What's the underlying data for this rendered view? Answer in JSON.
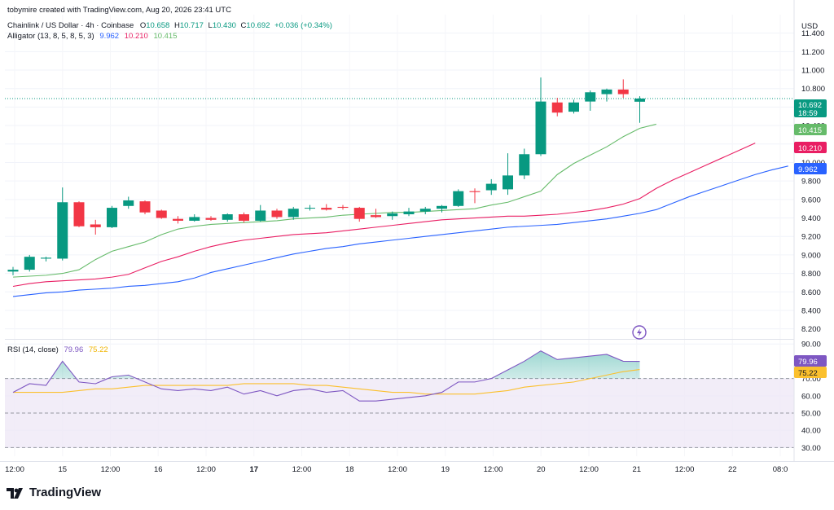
{
  "header": {
    "credit": "tobymire created with TradingView.com, Aug 20, 2026 23:41 UTC",
    "symbol_line": "Chainlink / US Dollar · 4h · Coinbase",
    "ohlc": {
      "o_label": "O",
      "o": "10.658",
      "h_label": "H",
      "h": "10.717",
      "l_label": "L",
      "l": "10.430",
      "c_label": "C",
      "c": "10.692",
      "change": "+0.036 (+0.34%)"
    },
    "indicator_label": "Alligator (13, 8, 5, 8, 5, 3)",
    "indicator_values": {
      "jaw": "9.962",
      "teeth": "10.210",
      "lips": "10.415"
    }
  },
  "rsi_header": {
    "label": "RSI (14, close)",
    "rsi": "79.96",
    "ma": "75.22"
  },
  "currency": "USD",
  "badges": {
    "price": "10.692",
    "countdown": "18:59",
    "lips": "10.415",
    "teeth": "10.210",
    "jaw": "9.962",
    "rsi": "79.96",
    "rsi_ma": "75.22"
  },
  "colors": {
    "up": "#089981",
    "down": "#f23645",
    "jaw": "#2962ff",
    "teeth": "#e91e63",
    "lips": "#66bb6a",
    "rsi": "#7e57c2",
    "rsi_ma": "#fbc02d",
    "rsi_band": "#ede7f6"
  },
  "icons": {
    "replay": "lightning-replay-icon"
  },
  "brand": "TradingView",
  "chart_data": {
    "type": "candlestick",
    "price_axis": {
      "ticks": [
        "11.400",
        "11.200",
        "11.000",
        "10.800",
        "10.600",
        "10.400",
        "10.200",
        "10.000",
        "9.800",
        "9.600",
        "9.400",
        "9.200",
        "9.000",
        "8.800",
        "8.600",
        "8.400",
        "8.200"
      ],
      "ylim": [
        8.1,
        11.6
      ]
    },
    "rsi_axis": {
      "ticks": [
        "90.00",
        "70.00",
        "60.00",
        "50.00",
        "40.00",
        "30.00"
      ],
      "ylim": [
        25,
        92
      ],
      "upper_band": 70,
      "middle": 50,
      "lower_band": 30
    },
    "x_labels": [
      "12:00",
      "15",
      "12:00",
      "16",
      "12:00",
      "17",
      "12:00",
      "18",
      "12:00",
      "19",
      "12:00",
      "20",
      "12:00",
      "21",
      "12:00",
      "22",
      "08:0"
    ],
    "bold_labels": [
      "17"
    ],
    "candles": [
      {
        "o": 8.82,
        "h": 8.87,
        "l": 8.78,
        "c": 8.84
      },
      {
        "o": 8.84,
        "h": 9.0,
        "l": 8.82,
        "c": 8.98
      },
      {
        "o": 8.96,
        "h": 8.98,
        "l": 8.93,
        "c": 8.97
      },
      {
        "o": 8.96,
        "h": 9.73,
        "l": 8.94,
        "c": 9.57
      },
      {
        "o": 9.57,
        "h": 9.58,
        "l": 9.3,
        "c": 9.31
      },
      {
        "o": 9.33,
        "h": 9.38,
        "l": 9.22,
        "c": 9.3
      },
      {
        "o": 9.3,
        "h": 9.53,
        "l": 9.29,
        "c": 9.51
      },
      {
        "o": 9.53,
        "h": 9.63,
        "l": 9.5,
        "c": 9.59
      },
      {
        "o": 9.58,
        "h": 9.59,
        "l": 9.44,
        "c": 9.46
      },
      {
        "o": 9.48,
        "h": 9.49,
        "l": 9.39,
        "c": 9.4
      },
      {
        "o": 9.39,
        "h": 9.42,
        "l": 9.34,
        "c": 9.37
      },
      {
        "o": 9.37,
        "h": 9.44,
        "l": 9.36,
        "c": 9.41
      },
      {
        "o": 9.4,
        "h": 9.42,
        "l": 9.37,
        "c": 9.38
      },
      {
        "o": 9.38,
        "h": 9.45,
        "l": 9.36,
        "c": 9.44
      },
      {
        "o": 9.44,
        "h": 9.46,
        "l": 9.35,
        "c": 9.37
      },
      {
        "o": 9.37,
        "h": 9.54,
        "l": 9.36,
        "c": 9.48
      },
      {
        "o": 9.48,
        "h": 9.5,
        "l": 9.39,
        "c": 9.41
      },
      {
        "o": 9.41,
        "h": 9.52,
        "l": 9.38,
        "c": 9.5
      },
      {
        "o": 9.51,
        "h": 9.54,
        "l": 9.48,
        "c": 9.51
      },
      {
        "o": 9.51,
        "h": 9.55,
        "l": 9.48,
        "c": 9.49
      },
      {
        "o": 9.52,
        "h": 9.54,
        "l": 9.49,
        "c": 9.51
      },
      {
        "o": 9.51,
        "h": 9.52,
        "l": 9.36,
        "c": 9.39
      },
      {
        "o": 9.43,
        "h": 9.5,
        "l": 9.4,
        "c": 9.41
      },
      {
        "o": 9.42,
        "h": 9.47,
        "l": 9.38,
        "c": 9.45
      },
      {
        "o": 9.44,
        "h": 9.51,
        "l": 9.42,
        "c": 9.47
      },
      {
        "o": 9.47,
        "h": 9.52,
        "l": 9.44,
        "c": 9.5
      },
      {
        "o": 9.5,
        "h": 9.54,
        "l": 9.46,
        "c": 9.53
      },
      {
        "o": 9.53,
        "h": 9.71,
        "l": 9.52,
        "c": 9.69
      },
      {
        "o": 9.69,
        "h": 9.72,
        "l": 9.56,
        "c": 9.68
      },
      {
        "o": 9.7,
        "h": 9.82,
        "l": 9.65,
        "c": 9.77
      },
      {
        "o": 9.71,
        "h": 10.1,
        "l": 9.65,
        "c": 9.86
      },
      {
        "o": 9.86,
        "h": 10.15,
        "l": 9.82,
        "c": 10.09
      },
      {
        "o": 10.09,
        "h": 10.92,
        "l": 10.07,
        "c": 10.66
      },
      {
        "o": 10.65,
        "h": 10.7,
        "l": 10.5,
        "c": 10.54
      },
      {
        "o": 10.55,
        "h": 10.68,
        "l": 10.53,
        "c": 10.65
      },
      {
        "o": 10.66,
        "h": 10.78,
        "l": 10.56,
        "c": 10.76
      },
      {
        "o": 10.74,
        "h": 10.8,
        "l": 10.66,
        "c": 10.79
      },
      {
        "o": 10.79,
        "h": 10.9,
        "l": 10.7,
        "c": 10.74
      },
      {
        "o": 10.658,
        "h": 10.717,
        "l": 10.43,
        "c": 10.692
      }
    ],
    "alligator": {
      "jaw": [
        8.55,
        8.57,
        8.59,
        8.6,
        8.62,
        8.63,
        8.64,
        8.66,
        8.67,
        8.69,
        8.71,
        8.75,
        8.81,
        8.85,
        8.89,
        8.93,
        8.97,
        9.01,
        9.04,
        9.07,
        9.09,
        9.12,
        9.14,
        9.16,
        9.18,
        9.2,
        9.22,
        9.24,
        9.26,
        9.28,
        9.3,
        9.31,
        9.32,
        9.33,
        9.35,
        9.37,
        9.39,
        9.42,
        9.45,
        9.49,
        9.56,
        9.63,
        9.69,
        9.75,
        9.81,
        9.87,
        9.92,
        9.962
      ],
      "teeth": [
        8.66,
        8.69,
        8.71,
        8.72,
        8.73,
        8.74,
        8.76,
        8.79,
        8.86,
        8.93,
        8.98,
        9.04,
        9.09,
        9.13,
        9.16,
        9.18,
        9.2,
        9.22,
        9.23,
        9.24,
        9.26,
        9.28,
        9.3,
        9.32,
        9.34,
        9.36,
        9.38,
        9.39,
        9.4,
        9.41,
        9.42,
        9.42,
        9.43,
        9.44,
        9.46,
        9.48,
        9.51,
        9.55,
        9.61,
        9.72,
        9.81,
        9.89,
        9.97,
        10.05,
        10.13,
        10.21
      ],
      "lips": [
        8.76,
        8.77,
        8.78,
        8.8,
        8.84,
        8.95,
        9.04,
        9.09,
        9.14,
        9.22,
        9.28,
        9.31,
        9.33,
        9.34,
        9.35,
        9.36,
        9.37,
        9.39,
        9.4,
        9.41,
        9.43,
        9.44,
        9.45,
        9.46,
        9.46,
        9.47,
        9.48,
        9.49,
        9.5,
        9.54,
        9.57,
        9.63,
        9.69,
        9.87,
        9.99,
        10.08,
        10.17,
        10.28,
        10.37,
        10.415
      ]
    },
    "rsi": [
      62,
      67,
      66,
      80,
      68,
      67,
      71,
      72,
      68,
      64,
      63,
      64,
      63,
      65,
      61,
      63,
      60,
      63,
      64,
      62,
      63,
      57,
      57,
      58,
      59,
      60,
      62,
      68,
      68,
      70,
      75,
      80,
      86,
      81,
      82,
      83,
      84,
      80,
      79.96
    ],
    "rsi_ma": [
      62,
      62,
      62,
      62,
      63,
      64,
      64,
      65,
      66,
      66,
      66,
      66,
      66,
      66,
      67,
      67,
      67,
      67,
      66,
      66,
      65,
      64,
      63,
      62,
      62,
      61,
      61,
      61,
      61,
      62,
      63,
      65,
      66,
      67,
      68,
      70,
      72,
      74,
      75.22
    ]
  }
}
